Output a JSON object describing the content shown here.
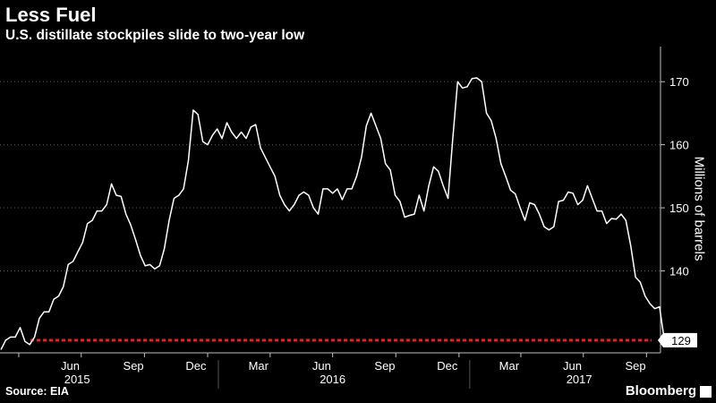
{
  "header": {
    "title": "Less Fuel",
    "subtitle": "U.S. distillate stockpiles slide to two-year low"
  },
  "footer": {
    "source": "Source: EIA",
    "brand": "Bloomberg"
  },
  "colors": {
    "background": "#000000",
    "line": "#ffffff",
    "reference": "#e8201f",
    "axis": "#bfbfbf",
    "grid": "#555555"
  },
  "chart_data": {
    "type": "line",
    "ylabel": "Millions of barrels",
    "ylim": [
      127,
      175
    ],
    "yticks": [
      140,
      150,
      160,
      170
    ],
    "grid": "horizontal dotted",
    "x_month_ticks": [
      "Jun",
      "Sep",
      "Dec",
      "Mar",
      "Jun",
      "Sep",
      "Dec",
      "Mar",
      "Jun",
      "Sep"
    ],
    "x_year_labels": [
      "2015",
      "2016",
      "2017"
    ],
    "x_range": [
      "2015-03-06",
      "2017-10-27"
    ],
    "series": [
      {
        "values": [
          127.5,
          129.0,
          129.5,
          129.5,
          131.0,
          128.8,
          128.3,
          129.5,
          132.5,
          133.5,
          133.5,
          135.5,
          136.0,
          137.5,
          141.0,
          141.5,
          143.0,
          144.5,
          147.5,
          148.0,
          149.5,
          149.5,
          150.5,
          153.8,
          152.0,
          151.8,
          149.0,
          147.3,
          145.0,
          142.5,
          140.8,
          141.0,
          140.3,
          140.8,
          143.5,
          148.0,
          151.5,
          152.0,
          153.0,
          157.5,
          165.5,
          164.8,
          160.5,
          160.0,
          161.5,
          162.5,
          161.0,
          163.5,
          162.0,
          161.0,
          162.0,
          161.0,
          162.8,
          163.2,
          159.5,
          158.0,
          156.5,
          155.0,
          152.0,
          150.5,
          149.5,
          150.5,
          152.0,
          152.5,
          152.0,
          150.0,
          149.0,
          153.0,
          153.0,
          152.3,
          153.0,
          151.3,
          153.0,
          153.0,
          155.0,
          158.0,
          163.0,
          165.0,
          163.0,
          161.0,
          157.0,
          156.0,
          152.0,
          151.0,
          148.5,
          148.8,
          149.0,
          152.0,
          149.5,
          153.5,
          156.5,
          155.8,
          153.5,
          151.5,
          161.0,
          170.0,
          169.0,
          169.2,
          170.5,
          170.6,
          170.0,
          165.0,
          163.8,
          161.0,
          157.0,
          155.0,
          152.8,
          152.2,
          150.0,
          148.0,
          150.8,
          150.5,
          149.0,
          147.0,
          146.5,
          147.0,
          151.0,
          151.2,
          152.5,
          152.3,
          150.5,
          151.2,
          153.5,
          151.5,
          149.5,
          149.5,
          147.5,
          148.3,
          148.2,
          149.0,
          148.0,
          144.0,
          139.0,
          138.2,
          136.0,
          134.8,
          134.0,
          134.3,
          129.0
        ]
      },
      {
        "reference_value": 129
      }
    ],
    "annotations": [
      "129"
    ]
  }
}
